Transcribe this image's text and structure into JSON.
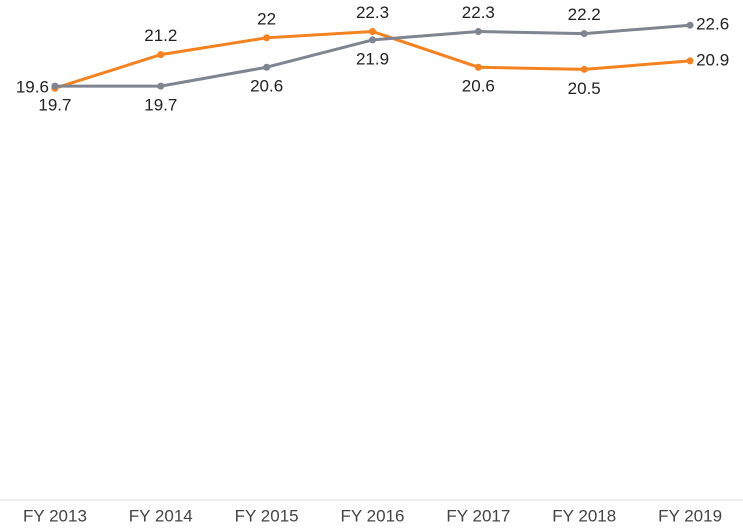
{
  "chart_data": {
    "type": "line",
    "categories": [
      "FY 2013",
      "FY 2014",
      "FY 2015",
      "FY 2016",
      "FY 2017",
      "FY 2018",
      "FY 2019"
    ],
    "series": [
      {
        "color": "#f5821f",
        "values": [
          19.6,
          21.2,
          22.0,
          22.3,
          20.6,
          20.5,
          20.9
        ]
      },
      {
        "color": "#7f8590",
        "values": [
          19.7,
          19.7,
          20.6,
          21.9,
          22.3,
          22.2,
          22.6
        ]
      }
    ],
    "ylim": [
      0,
      23.8
    ]
  }
}
